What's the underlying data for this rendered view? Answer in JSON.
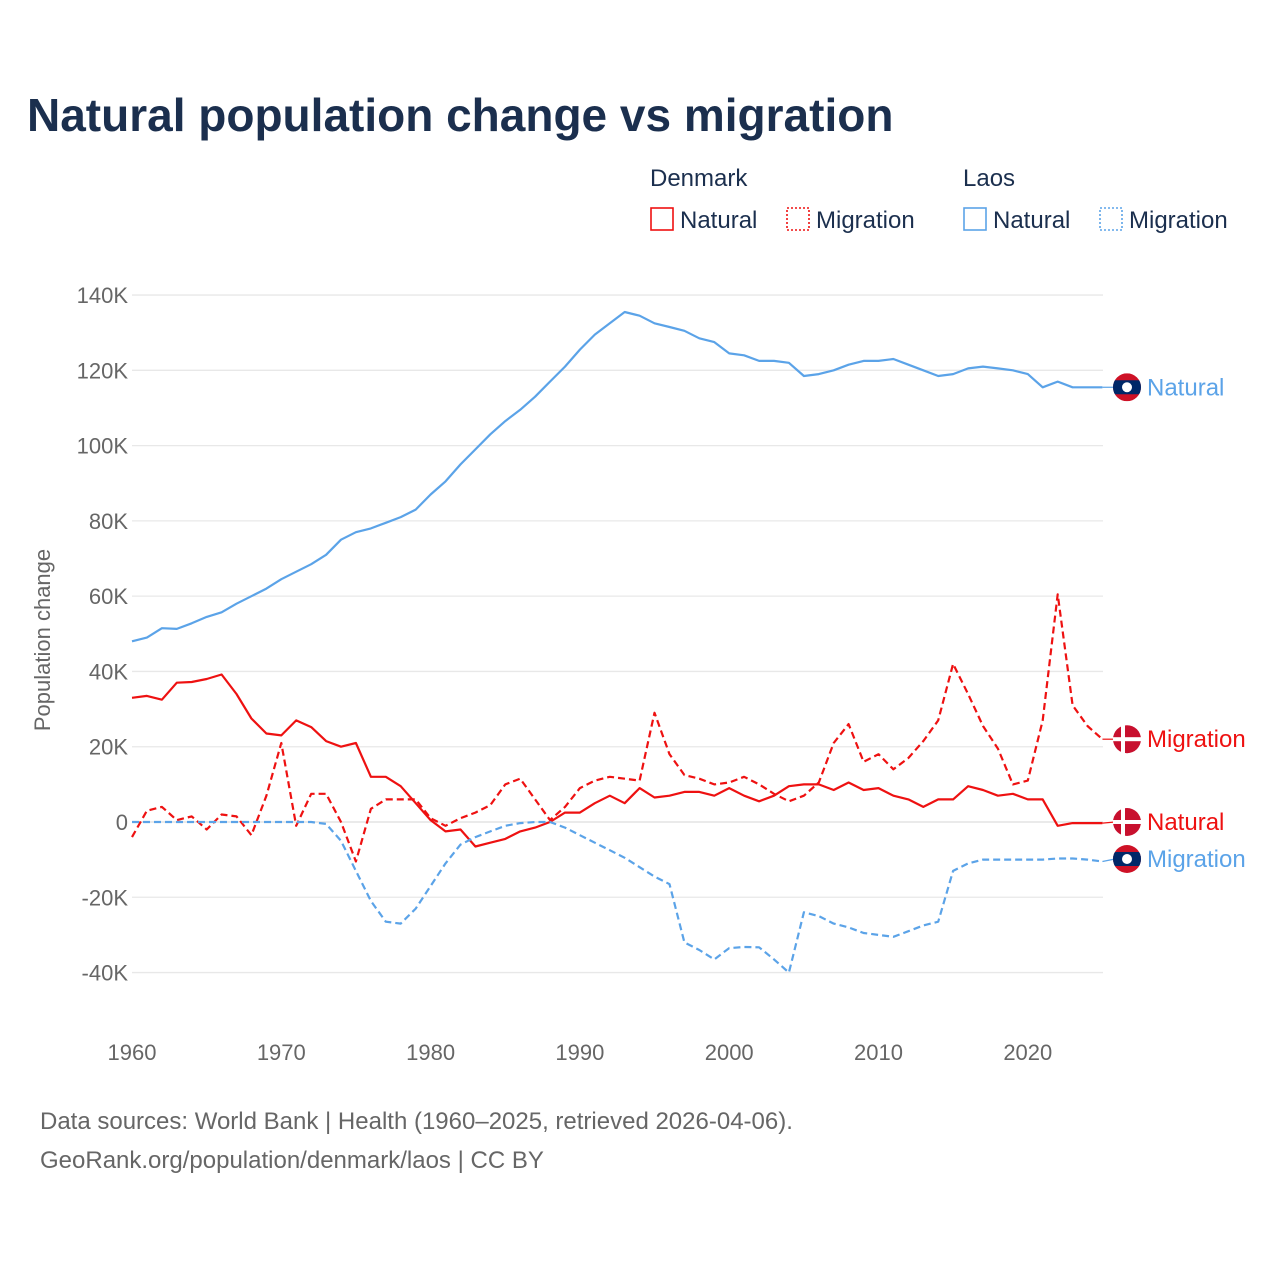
{
  "chart_data": {
    "type": "line",
    "title": "Natural population change vs migration",
    "ylabel": "Population change",
    "xlabel": "",
    "ylim": [
      -50000,
      145000
    ],
    "xlim": [
      1960,
      2025
    ],
    "y_ticks": [
      -40000,
      -20000,
      0,
      20000,
      40000,
      60000,
      80000,
      100000,
      120000,
      140000
    ],
    "y_tick_labels": [
      "-40K",
      "-20K",
      "0",
      "20K",
      "40K",
      "60K",
      "80K",
      "100K",
      "120K",
      "140K"
    ],
    "x_ticks": [
      1960,
      1970,
      1980,
      1990,
      2000,
      2010,
      2020
    ],
    "x_tick_labels": [
      "1960",
      "1970",
      "1980",
      "1990",
      "2000",
      "2010",
      "2020"
    ],
    "grid": true,
    "legend": {
      "placement": "top-right",
      "groups": [
        {
          "name": "Denmark",
          "entries": [
            "Natural",
            "Migration"
          ]
        },
        {
          "name": "Laos",
          "entries": [
            "Natural",
            "Migration"
          ]
        }
      ]
    },
    "x_start": 1960,
    "series": [
      {
        "country": "Laos",
        "name": "Natural",
        "color": "#5ba3e8",
        "dash": false,
        "end_label": "Natural",
        "values": [
          48,
          49,
          51.5,
          51.3,
          52.8,
          54.5,
          55.7,
          58,
          60,
          62,
          64.5,
          66.5,
          68.5,
          71,
          75,
          77,
          78,
          79.5,
          81,
          83,
          87,
          90.5,
          95,
          99,
          103,
          106.5,
          109.5,
          113,
          117,
          121,
          125.5,
          129.5,
          132.5,
          135.5,
          134.5,
          132.5,
          131.5,
          130.5,
          128.5,
          127.5,
          124.5,
          124,
          122.5,
          122.5,
          122,
          118.5,
          119,
          120,
          121.5,
          122.5,
          122.5,
          123,
          121.5,
          120,
          118.5,
          119,
          120.5,
          121,
          120.5,
          120,
          119,
          115.5,
          117,
          115.5,
          115.5,
          115.5
        ]
      },
      {
        "country": "Denmark",
        "name": "Migration",
        "color": "#ee1111",
        "dash": true,
        "end_label": "Migration",
        "values": [
          -4,
          3,
          4,
          0.5,
          1.5,
          -2,
          2,
          1.5,
          -3.5,
          7,
          21,
          -1,
          7.5,
          7.5,
          0,
          -10.5,
          3.5,
          6,
          6,
          6,
          1,
          -1,
          1,
          2.5,
          4.5,
          10,
          11.5,
          6,
          0.5,
          4,
          9,
          11,
          12,
          11.5,
          11,
          29,
          18,
          12.5,
          11.5,
          10,
          10.5,
          12,
          10,
          7.5,
          5.5,
          7,
          10.5,
          21,
          26,
          16,
          18,
          14,
          17,
          21.5,
          27,
          42,
          34,
          25.5,
          19.5,
          10,
          11,
          27,
          60.5,
          31,
          25.5,
          22
        ]
      },
      {
        "country": "Denmark",
        "name": "Natural",
        "color": "#ee1111",
        "dash": false,
        "end_label": "Natural",
        "values": [
          33,
          33.5,
          32.5,
          37,
          37.2,
          38,
          39.2,
          34,
          27.5,
          23.5,
          23,
          27,
          25.2,
          21.5,
          20,
          21,
          12,
          12,
          9.5,
          5,
          0.5,
          -2.5,
          -2,
          -6.5,
          -5.5,
          -4.5,
          -2.5,
          -1.5,
          0,
          2.5,
          2.5,
          5,
          7,
          5,
          9,
          6.5,
          7,
          8,
          8,
          7,
          9,
          7,
          5.5,
          7,
          9.5,
          10,
          10,
          8.5,
          10.5,
          8.5,
          9,
          7,
          6,
          4,
          6,
          6,
          9.5,
          8.5,
          7,
          7.5,
          6,
          6,
          -1,
          -0.3,
          -0.3,
          -0.3
        ]
      },
      {
        "country": "Laos",
        "name": "Migration",
        "color": "#5ba3e8",
        "dash": true,
        "end_label": "Migration",
        "values": [
          0,
          0,
          0,
          0,
          0,
          0,
          0,
          0,
          0,
          0,
          0,
          0,
          0,
          -0.5,
          -5,
          -13,
          -21,
          -26.5,
          -27,
          -23,
          -17,
          -11,
          -6,
          -4,
          -2.5,
          -1,
          -0.3,
          0,
          0,
          -1.5,
          -3.5,
          -5.5,
          -7.5,
          -9.5,
          -12,
          -14.5,
          -16.5,
          -32,
          -34,
          -36.5,
          -33.5,
          -33.2,
          -33.3,
          -36.5,
          -40,
          -24,
          -25,
          -27,
          -28,
          -29.5,
          -30,
          -30.5,
          -29,
          -27.5,
          -26.5,
          -13,
          -11,
          -10,
          -10,
          -10,
          -10,
          -10,
          -9.7,
          -9.7,
          -10,
          -10.5
        ]
      }
    ],
    "values_unit": "thousands"
  },
  "sources": {
    "line1": "Data sources: World Bank | Health (1960–2025, retrieved 2026-04-06).",
    "line2": "GeoRank.org/population/denmark/laos | CC BY"
  }
}
